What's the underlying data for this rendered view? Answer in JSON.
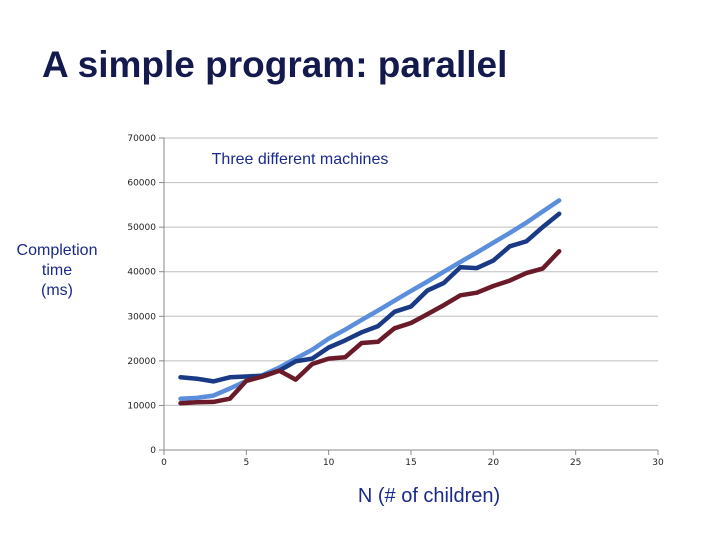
{
  "slide": {
    "title": "A simple program: parallel"
  },
  "chart_data": {
    "type": "line",
    "annotation": "Three different machines",
    "xlabel": "N (# of children)",
    "ylabel_lines": [
      "Completion",
      "time",
      "(ms)"
    ],
    "xlim": [
      0,
      30
    ],
    "ylim": [
      0,
      70000
    ],
    "xticks": [
      0,
      5,
      10,
      15,
      20,
      25,
      30
    ],
    "yticks": [
      0,
      10000,
      20000,
      30000,
      40000,
      50000,
      60000,
      70000
    ],
    "grid": true,
    "series": [
      {
        "color": "#5b8fdc",
        "x": [
          1,
          2,
          3,
          4,
          5,
          6,
          7,
          8,
          9,
          10,
          11,
          12,
          13,
          14,
          15,
          16,
          17,
          18,
          19,
          20,
          21,
          22,
          23,
          24
        ],
        "values": [
          11500,
          11700,
          12200,
          13800,
          15500,
          16800,
          18500,
          20500,
          22500,
          25000,
          27000,
          29200,
          31300,
          33500,
          35700,
          37800,
          40000,
          42200,
          44300,
          46500,
          48700,
          51000,
          53500,
          56000
        ]
      },
      {
        "color": "#1a3a85",
        "x": [
          1,
          2,
          3,
          4,
          5,
          6,
          7,
          8,
          9,
          10,
          11,
          12,
          13,
          14,
          15,
          16,
          17,
          18,
          19,
          20,
          21,
          22,
          23,
          24
        ],
        "values": [
          16300,
          16000,
          15400,
          16300,
          16500,
          16700,
          17800,
          19900,
          20500,
          23000,
          24600,
          26400,
          27800,
          31000,
          32200,
          35800,
          37500,
          41000,
          40800,
          42500,
          45700,
          46800,
          50000,
          53000
        ]
      },
      {
        "color": "#6b1a2a",
        "x": [
          1,
          2,
          3,
          4,
          5,
          6,
          7,
          8,
          9,
          10,
          11,
          12,
          13,
          14,
          15,
          16,
          17,
          18,
          19,
          20,
          21,
          22,
          23,
          24
        ],
        "values": [
          10500,
          10700,
          10800,
          11500,
          15500,
          16500,
          17800,
          15800,
          19300,
          20500,
          20800,
          24000,
          24300,
          27300,
          28500,
          30500,
          32500,
          34700,
          35300,
          36800,
          38000,
          39700,
          40700,
          44600
        ]
      }
    ]
  }
}
